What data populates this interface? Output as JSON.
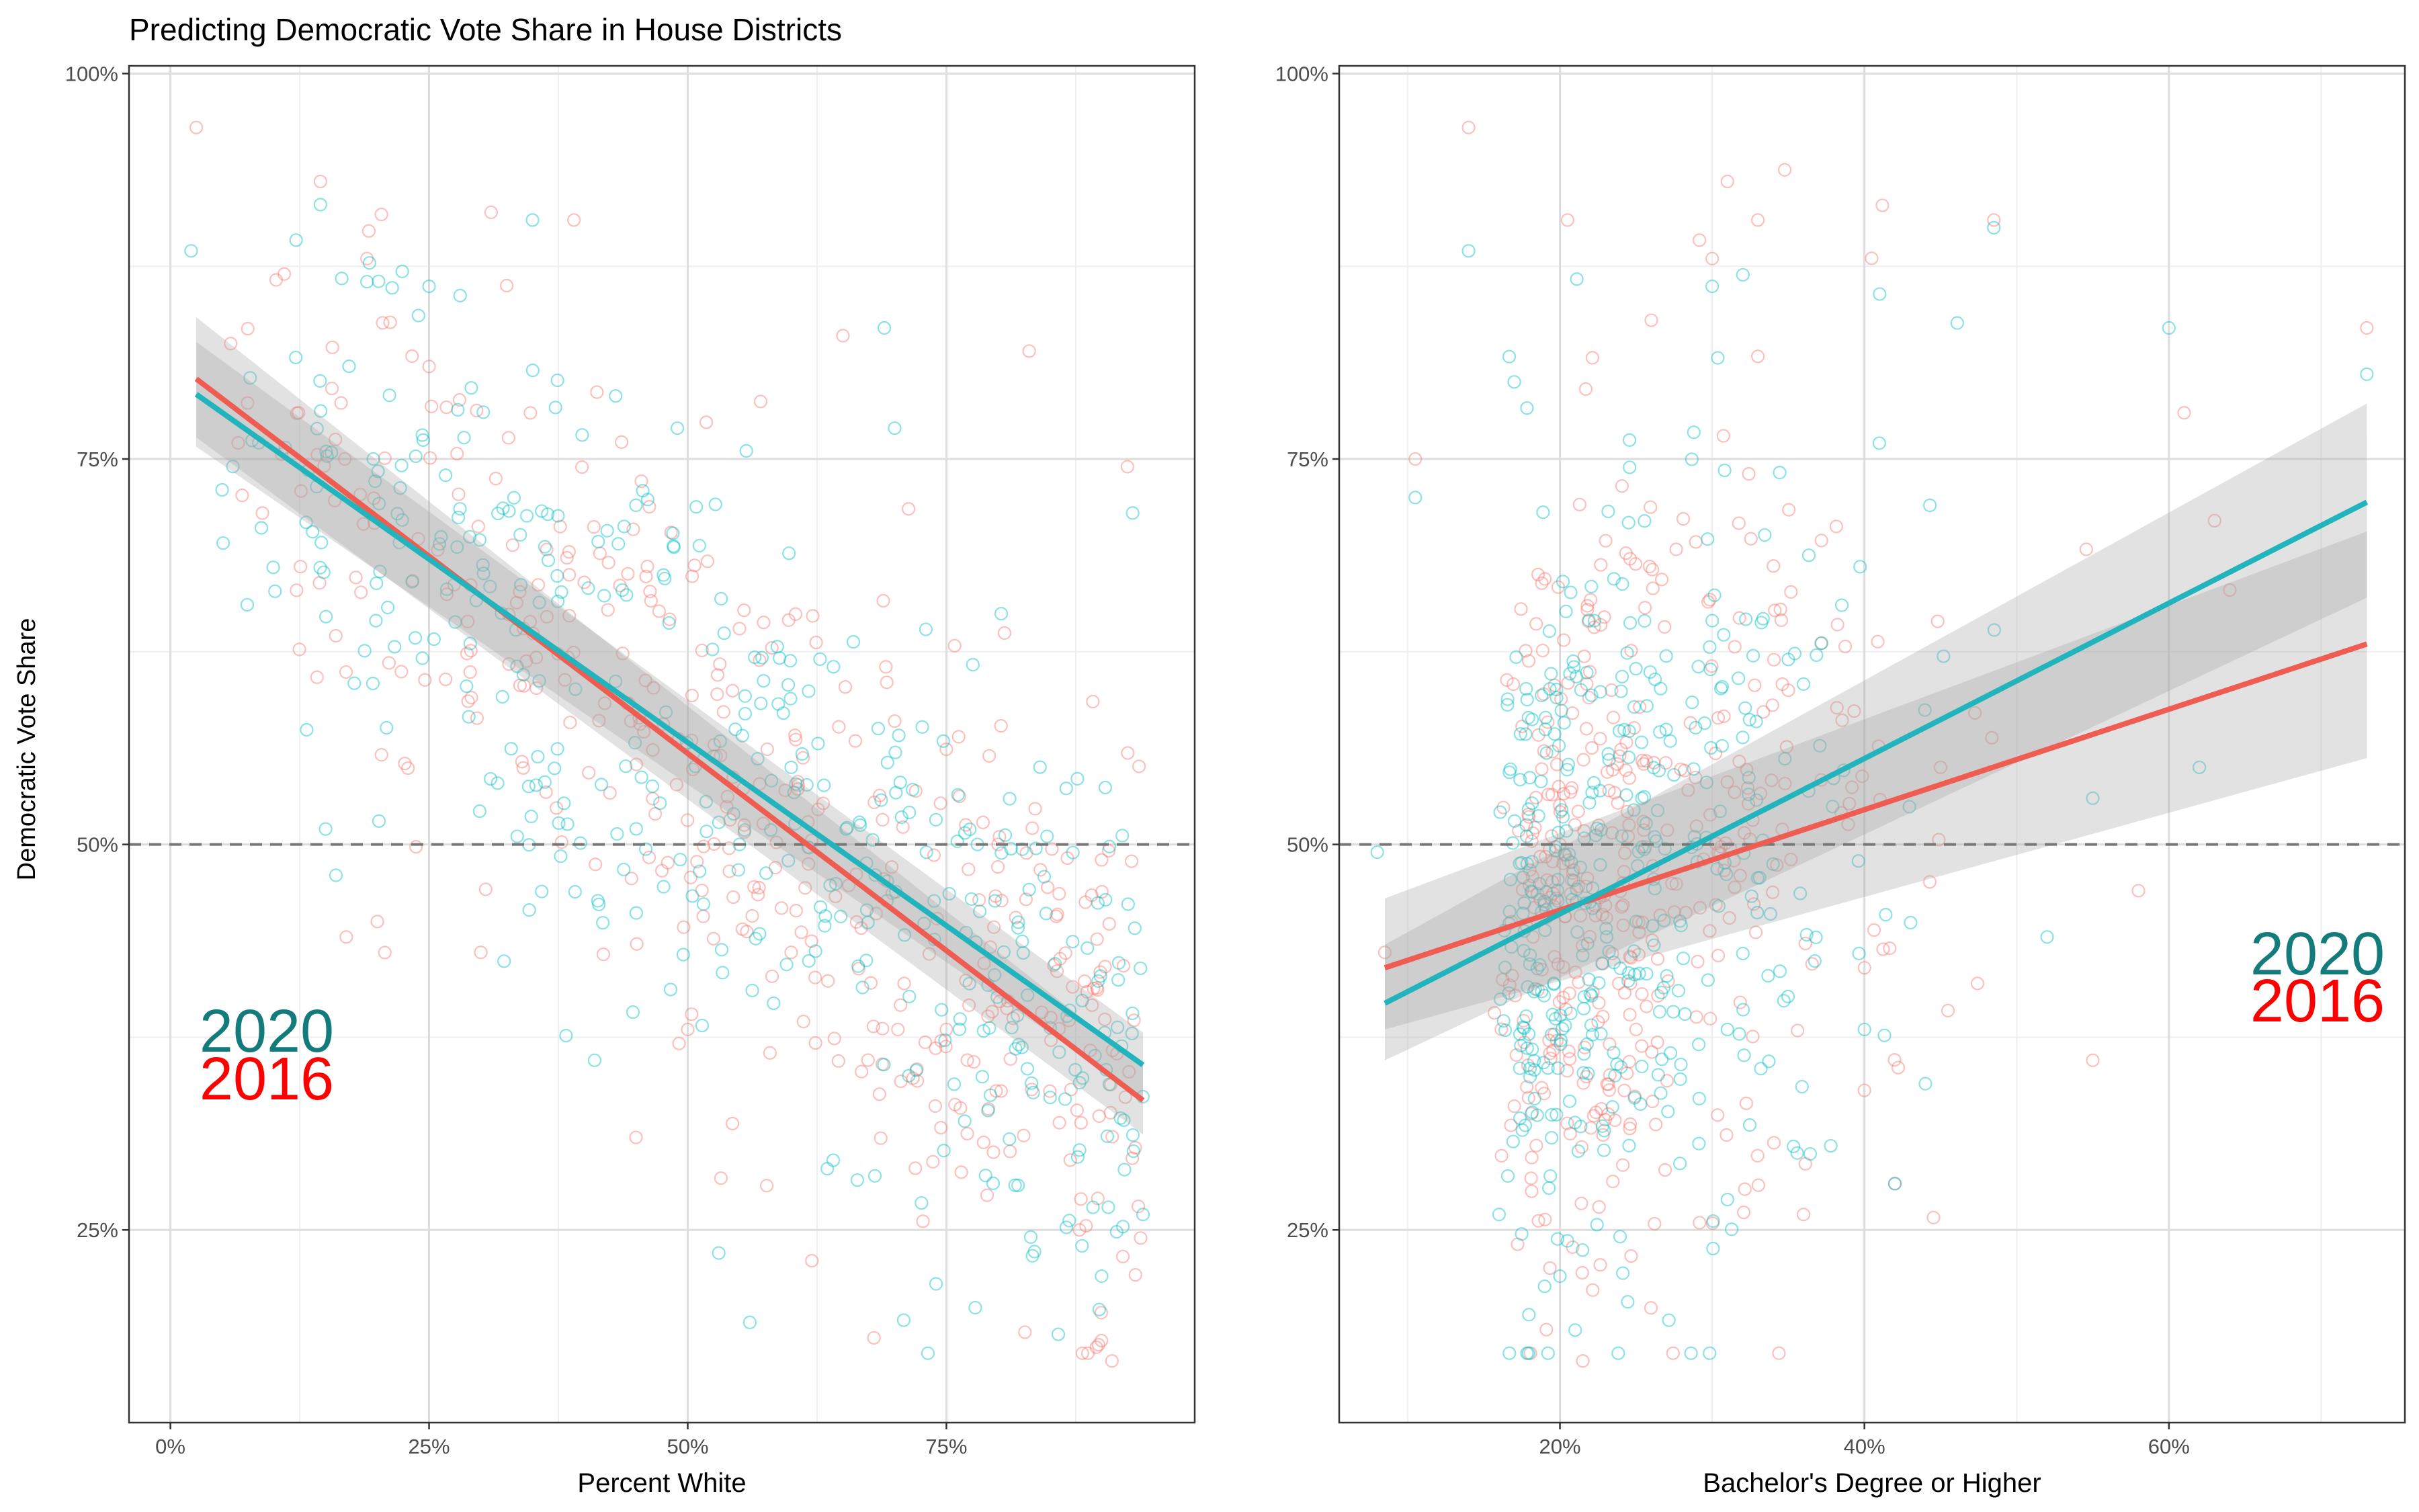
{
  "title": "Predicting Democratic Vote Share in House Districts",
  "y_axis_title": "Democratic Vote Share",
  "colors": {
    "y2016": "#F8766D",
    "y2016_line": "#EE5C52",
    "y2016_label": "#FF0000",
    "y2020": "#00BFC4",
    "y2020_line": "#22B4BC",
    "y2020_label": "#137B7B",
    "band": "#a6a6a6",
    "grid_major": "#dddddd",
    "grid_minor": "#efefef",
    "reference_line": "#777777"
  },
  "chart_data": [
    {
      "type": "scatter",
      "title": "Predicting Democratic Vote Share in House Districts",
      "xlabel": "Percent White",
      "ylabel": "Democratic Vote Share",
      "xlim": [
        -0.04,
        0.99
      ],
      "ylim": [
        0.125,
        1.005
      ],
      "xticks": [
        0,
        0.25,
        0.5,
        0.75
      ],
      "xtick_labels": [
        "0%",
        "25%",
        "50%",
        "75%"
      ],
      "yticks": [
        0.25,
        0.5,
        0.75,
        1.0
      ],
      "ytick_labels": [
        "25%",
        "50%",
        "75%",
        "100%"
      ],
      "grid": true,
      "reference_line_y": 0.5,
      "year_labels": {
        "upper": "2020",
        "lower": "2016",
        "placement": "lower-left"
      },
      "fits": [
        {
          "name": "2020",
          "x": [
            0.025,
            0.94
          ],
          "y": [
            0.792,
            0.357
          ],
          "ci_lower": [
            0.758,
            0.336
          ],
          "ci_upper": [
            0.826,
            0.378
          ]
        },
        {
          "name": "2016",
          "x": [
            0.025,
            0.94
          ],
          "y": [
            0.802,
            0.334
          ],
          "ci_lower": [
            0.764,
            0.312
          ],
          "ci_upper": [
            0.842,
            0.356
          ]
        }
      ],
      "sample_points": {
        "2016": [
          [
            0.025,
            0.965
          ],
          [
            0.11,
            0.87
          ],
          [
            0.145,
            0.93
          ],
          [
            0.31,
            0.91
          ],
          [
            0.39,
            0.905
          ],
          [
            0.19,
            0.88
          ],
          [
            0.25,
            0.81
          ],
          [
            0.65,
            0.83
          ],
          [
            0.83,
            0.82
          ],
          [
            0.925,
            0.745
          ],
          [
            0.4,
            0.67
          ],
          [
            0.55,
            0.64
          ],
          [
            0.7,
            0.58
          ],
          [
            0.8,
            0.5
          ],
          [
            0.9,
            0.49
          ],
          [
            0.6,
            0.43
          ],
          [
            0.75,
            0.38
          ],
          [
            0.85,
            0.34
          ],
          [
            0.91,
            0.165
          ],
          [
            0.68,
            0.18
          ],
          [
            0.62,
            0.23
          ],
          [
            0.2,
            0.45
          ],
          [
            0.3,
            0.43
          ],
          [
            0.17,
            0.44
          ],
          [
            0.45,
            0.31
          ],
          [
            0.5,
            0.38
          ],
          [
            0.72,
            0.29
          ],
          [
            0.88,
            0.27
          ]
        ],
        "2020": [
          [
            0.02,
            0.885
          ],
          [
            0.145,
            0.915
          ],
          [
            0.19,
            0.865
          ],
          [
            0.25,
            0.862
          ],
          [
            0.28,
            0.856
          ],
          [
            0.35,
            0.905
          ],
          [
            0.49,
            0.77
          ],
          [
            0.7,
            0.77
          ],
          [
            0.69,
            0.835
          ],
          [
            0.93,
            0.715
          ],
          [
            0.05,
            0.73
          ],
          [
            0.15,
            0.51
          ],
          [
            0.16,
            0.48
          ],
          [
            0.41,
            0.36
          ],
          [
            0.56,
            0.19
          ],
          [
            0.53,
            0.235
          ],
          [
            0.74,
            0.215
          ],
          [
            0.9,
            0.22
          ],
          [
            0.94,
            0.26
          ],
          [
            0.6,
            0.55
          ],
          [
            0.78,
            0.5
          ],
          [
            0.45,
            0.72
          ],
          [
            0.32,
            0.65
          ],
          [
            0.55,
            0.5
          ]
        ]
      }
    },
    {
      "type": "scatter",
      "xlabel": "Bachelor's Degree or Higher",
      "ylabel": "Democratic Vote Share",
      "xlim": [
        0.055,
        0.755
      ],
      "ylim": [
        0.125,
        1.005
      ],
      "xticks": [
        0.2,
        0.4,
        0.6
      ],
      "xtick_labels": [
        "20%",
        "40%",
        "60%"
      ],
      "yticks": [
        0.25,
        0.5,
        0.75,
        1.0
      ],
      "ytick_labels": [
        "25%",
        "50%",
        "75%",
        "100%"
      ],
      "grid": true,
      "reference_line_y": 0.5,
      "year_labels": {
        "upper": "2020",
        "lower": "2016",
        "placement": "right"
      },
      "fits": [
        {
          "name": "2020",
          "x": [
            0.085,
            0.73
          ],
          "y": [
            0.397,
            0.722
          ],
          "ci_lower": [
            0.36,
            0.66
          ],
          "ci_upper": [
            0.435,
            0.786
          ]
        },
        {
          "name": "2016",
          "x": [
            0.085,
            0.73
          ],
          "y": [
            0.42,
            0.63
          ],
          "ci_lower": [
            0.38,
            0.556
          ],
          "ci_upper": [
            0.465,
            0.703
          ]
        }
      ],
      "sample_points": {
        "2016": [
          [
            0.14,
            0.965
          ],
          [
            0.085,
            0.43
          ],
          [
            0.105,
            0.75
          ],
          [
            0.205,
            0.905
          ],
          [
            0.215,
            0.165
          ],
          [
            0.31,
            0.93
          ],
          [
            0.33,
            0.905
          ],
          [
            0.485,
            0.905
          ],
          [
            0.73,
            0.835
          ],
          [
            0.61,
            0.78
          ],
          [
            0.63,
            0.71
          ],
          [
            0.3,
            0.88
          ],
          [
            0.2,
            0.5
          ],
          [
            0.35,
            0.6
          ],
          [
            0.45,
            0.55
          ],
          [
            0.25,
            0.38
          ],
          [
            0.4,
            0.42
          ],
          [
            0.55,
            0.36
          ],
          [
            0.58,
            0.47
          ],
          [
            0.36,
            0.26
          ],
          [
            0.42,
            0.28
          ],
          [
            0.26,
            0.84
          ],
          [
            0.64,
            0.665
          ]
        ],
        "2020": [
          [
            0.08,
            0.495
          ],
          [
            0.105,
            0.725
          ],
          [
            0.14,
            0.885
          ],
          [
            0.2,
            0.22
          ],
          [
            0.21,
            0.185
          ],
          [
            0.3,
            0.862
          ],
          [
            0.41,
            0.857
          ],
          [
            0.485,
            0.9
          ],
          [
            0.6,
            0.835
          ],
          [
            0.73,
            0.805
          ],
          [
            0.17,
            0.8
          ],
          [
            0.31,
            0.38
          ],
          [
            0.42,
            0.28
          ],
          [
            0.55,
            0.53
          ],
          [
            0.25,
            0.45
          ],
          [
            0.35,
            0.62
          ],
          [
            0.52,
            0.44
          ],
          [
            0.62,
            0.55
          ],
          [
            0.16,
            0.26
          ],
          [
            0.4,
            0.38
          ]
        ]
      }
    }
  ]
}
